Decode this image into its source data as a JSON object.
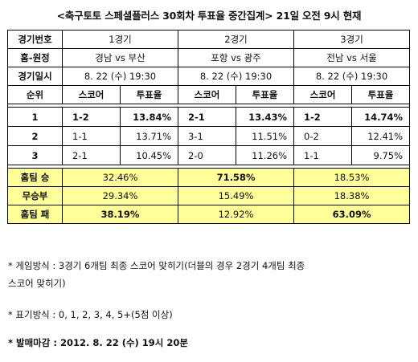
{
  "title": "<축구토토 스페셜플러스 30회차 투표율 중간집계> 21일 오전 9시 현재",
  "table": {
    "rows_header": {
      "game_no": "경기번호",
      "home_away": "홈-원정",
      "date": "경기일시",
      "rank": "순위"
    },
    "games": [
      {
        "label": "1경기",
        "teams": "경남 vs 부산",
        "datetime": "8. 22 (수) 19:30"
      },
      {
        "label": "2경기",
        "teams": "포항 vs 광주",
        "datetime": "8. 22 (수) 19:30"
      },
      {
        "label": "3경기",
        "teams": "전남 vs 서울",
        "datetime": "8. 22 (수) 19:30"
      }
    ],
    "sub_headers": {
      "score": "스코어",
      "rate": "투표율"
    },
    "ranks": [
      {
        "rank": "1",
        "cells": [
          {
            "score": "1-2",
            "rate": "13.84%"
          },
          {
            "score": "2-1",
            "rate": "13.43%"
          },
          {
            "score": "1-2",
            "rate": "14.74%"
          }
        ]
      },
      {
        "rank": "2",
        "cells": [
          {
            "score": "1-1",
            "rate": "13.71%"
          },
          {
            "score": "3-1",
            "rate": "11.51%"
          },
          {
            "score": "0-2",
            "rate": "12.41%"
          }
        ]
      },
      {
        "rank": "3",
        "cells": [
          {
            "score": "2-1",
            "rate": "10.45%"
          },
          {
            "score": "2-0",
            "rate": "11.26%"
          },
          {
            "score": "1-1",
            "rate": "9.75%"
          }
        ]
      }
    ],
    "outcomes": [
      {
        "label": "홈팀 승",
        "values": [
          "32.46%",
          "71.58%",
          "18.53%"
        ]
      },
      {
        "label": "무승부",
        "values": [
          "29.34%",
          "15.49%",
          "18.38%"
        ]
      },
      {
        "label": "홈팀 패",
        "values": [
          "38.19%",
          "12.92%",
          "63.09%"
        ]
      }
    ],
    "colors": {
      "highlight_row": "#ffff99",
      "border": "#000000"
    }
  },
  "notes": {
    "method_line1": "* 게임방식 : 3경기 6개팀 최종 스코어 맞히기(더블의 경우 2경기 4개팀 최종",
    "method_line2": "스코어 맞히기)",
    "notation": "* 표기방식 : 0, 1, 2, 3, 4, 5+(5점 이상)",
    "deadline_label": "* 발매마감",
    "deadline_value": " : 2012. 8. 22 (수) 19시 20분"
  }
}
